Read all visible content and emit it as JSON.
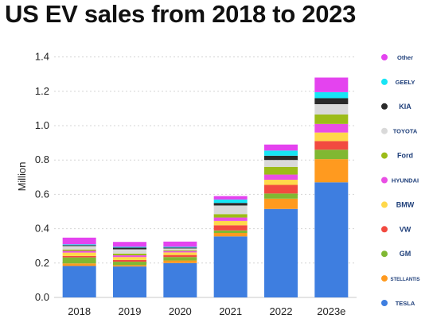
{
  "chart_data": {
    "type": "bar",
    "stacked": true,
    "title": "US EV sales from 2018 to 2023",
    "xlabel": "",
    "ylabel": "Million",
    "ylim": [
      0,
      1.5
    ],
    "yticks": [
      "0.0",
      "0.2",
      "0.4",
      "0.6",
      "0.8",
      "1.0",
      "1.2",
      "1.4"
    ],
    "grid": true,
    "legend_position": "right",
    "categories": [
      "2018",
      "2019",
      "2020",
      "2021",
      "2022",
      "2023e"
    ],
    "series": [
      {
        "name": "Tesla",
        "label": "TESLA",
        "icon": "tesla-logo-icon",
        "color": "#3e7ee0",
        "values": [
          0.183,
          0.18,
          0.2,
          0.355,
          0.515,
          0.67
        ]
      },
      {
        "name": "Stellantis",
        "label": "STELLANTIS",
        "icon": "stellantis-logo-icon",
        "color": "#ff9a1f",
        "values": [
          0.015,
          0.008,
          0.015,
          0.02,
          0.06,
          0.135
        ]
      },
      {
        "name": "GM",
        "label": "GM",
        "icon": "gm-logo-icon",
        "color": "#80b832",
        "values": [
          0.035,
          0.02,
          0.02,
          0.015,
          0.03,
          0.055
        ]
      },
      {
        "name": "Volkswagen",
        "label": "VW",
        "icon": "volkswagen-logo-icon",
        "color": "#f24a40",
        "values": [
          0.008,
          0.01,
          0.012,
          0.03,
          0.05,
          0.05
        ]
      },
      {
        "name": "BMW",
        "label": "BMW",
        "icon": "bmw-logo-icon",
        "color": "#ffd84a",
        "values": [
          0.02,
          0.017,
          0.015,
          0.025,
          0.03,
          0.05
        ]
      },
      {
        "name": "Hyundai",
        "label": "HYUNDAI",
        "icon": "hyundai-logo-icon",
        "color": "#e94ee4",
        "values": [
          0.01,
          0.01,
          0.008,
          0.02,
          0.03,
          0.05
        ]
      },
      {
        "name": "Ford",
        "label": "Ford",
        "icon": "ford-logo-icon",
        "color": "#9cbc18",
        "values": [
          0.008,
          0.01,
          0.005,
          0.02,
          0.045,
          0.055
        ]
      },
      {
        "name": "Toyota",
        "label": "TOYOTA",
        "icon": "toyota-logo-icon",
        "color": "#d9d9d9",
        "values": [
          0.02,
          0.025,
          0.01,
          0.05,
          0.04,
          0.06
        ]
      },
      {
        "name": "Kia",
        "label": "KIA",
        "icon": "kia-logo-icon",
        "color": "#2a2a2a",
        "values": [
          0.005,
          0.01,
          0.005,
          0.015,
          0.025,
          0.035
        ]
      },
      {
        "name": "Geely",
        "label": "GEELY",
        "icon": "geely-logo-icon",
        "color": "#17e5f5",
        "values": [
          0.005,
          0.005,
          0.005,
          0.02,
          0.03,
          0.035
        ]
      },
      {
        "name": "Other",
        "label": "Other",
        "icon": "",
        "color": "#e443ef",
        "values": [
          0.039,
          0.028,
          0.03,
          0.02,
          0.035,
          0.085
        ]
      }
    ]
  }
}
